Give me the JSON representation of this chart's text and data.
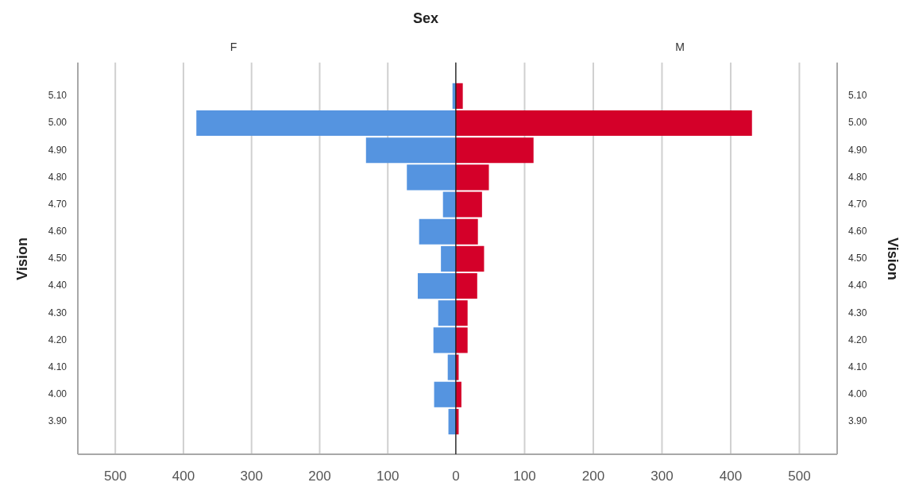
{
  "chart_data": [
    {
      "type": "bar",
      "orientation": "horizontal",
      "title": "Sex",
      "subtitle": "F",
      "ylabel": "Vision",
      "categories": [
        "5.10",
        "5.00",
        "4.90",
        "4.80",
        "4.70",
        "4.60",
        "4.50",
        "4.40",
        "4.30",
        "4.20",
        "4.10",
        "4.00",
        "3.90"
      ],
      "series": [
        {
          "color": "#5594e0",
          "values": [
            5,
            381,
            132,
            72,
            19,
            54,
            22,
            56,
            26,
            33,
            12,
            32,
            11
          ]
        }
      ],
      "xlim": [
        555,
        0
      ],
      "xticks": [
        500,
        400,
        300,
        200,
        100,
        {
          "value": 0,
          "label": null
        }
      ],
      "grid": "x"
    },
    {
      "type": "bar",
      "orientation": "horizontal",
      "subtitle": "M",
      "ylabel": "Vision",
      "categories": [
        "5.10",
        "5.00",
        "4.90",
        "4.80",
        "4.70",
        "4.60",
        "4.50",
        "4.40",
        "4.30",
        "4.20",
        "4.10",
        "4.00",
        "3.90"
      ],
      "series": [
        {
          "color": "#d40029",
          "values": [
            10,
            431,
            113,
            48,
            38,
            32,
            41,
            31,
            17,
            17,
            4,
            8,
            4
          ]
        }
      ],
      "xlim": [
        0,
        555
      ],
      "xticks": [
        0,
        100,
        200,
        300,
        400,
        500
      ],
      "grid": "x"
    }
  ]
}
